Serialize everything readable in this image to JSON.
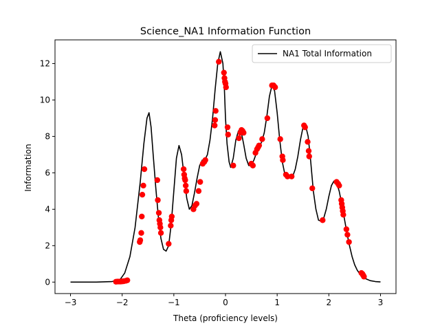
{
  "chart_data": {
    "type": "line",
    "title": "Science_NA1 Information Function",
    "xlabel": "Theta (proficiency levels)",
    "ylabel": "Information",
    "xlim": [
      -3.3,
      3.3
    ],
    "ylim": [
      -0.63,
      13.3
    ],
    "xticks": [
      -3,
      -2,
      -1,
      0,
      1,
      2,
      3
    ],
    "yticks": [
      0,
      2,
      4,
      6,
      8,
      10,
      12
    ],
    "xtick_labels": [
      "−3",
      "−2",
      "−1",
      "0",
      "1",
      "2",
      "3"
    ],
    "ytick_labels": [
      "0",
      "2",
      "4",
      "6",
      "8",
      "10",
      "12"
    ],
    "grid": false,
    "legend_position": "top-right",
    "colors": {
      "line": "#000000",
      "points": "#ff0000",
      "axes": "#000000"
    },
    "series": [
      {
        "name": "NA1 Total Information",
        "kind": "line",
        "x": [
          -3.0,
          -2.5,
          -2.2,
          -2.05,
          -1.95,
          -1.85,
          -1.75,
          -1.65,
          -1.58,
          -1.52,
          -1.48,
          -1.44,
          -1.4,
          -1.35,
          -1.3,
          -1.25,
          -1.2,
          -1.15,
          -1.1,
          -1.05,
          -1.0,
          -0.95,
          -0.9,
          -0.85,
          -0.8,
          -0.75,
          -0.7,
          -0.65,
          -0.6,
          -0.55,
          -0.5,
          -0.45,
          -0.4,
          -0.35,
          -0.3,
          -0.25,
          -0.2,
          -0.15,
          -0.1,
          -0.05,
          -0.02,
          0.0,
          0.03,
          0.07,
          0.1,
          0.15,
          0.2,
          0.25,
          0.3,
          0.35,
          0.4,
          0.45,
          0.5,
          0.55,
          0.6,
          0.65,
          0.7,
          0.75,
          0.8,
          0.85,
          0.9,
          0.95,
          1.0,
          1.05,
          1.1,
          1.15,
          1.2,
          1.25,
          1.3,
          1.35,
          1.4,
          1.45,
          1.5,
          1.55,
          1.6,
          1.65,
          1.7,
          1.75,
          1.8,
          1.85,
          1.9,
          1.95,
          2.0,
          2.05,
          2.1,
          2.15,
          2.2,
          2.25,
          2.3,
          2.35,
          2.4,
          2.45,
          2.5,
          2.55,
          2.6,
          2.65,
          2.7,
          2.8,
          2.9,
          3.0
        ],
        "y": [
          0.0,
          0.0,
          0.03,
          0.1,
          0.5,
          1.4,
          3.0,
          5.5,
          7.6,
          9.0,
          9.3,
          8.5,
          7.0,
          5.2,
          3.6,
          2.4,
          1.8,
          1.7,
          2.0,
          3.2,
          5.0,
          6.8,
          7.5,
          7.0,
          5.8,
          4.6,
          4.0,
          4.2,
          4.9,
          5.7,
          6.4,
          6.7,
          6.7,
          7.0,
          7.8,
          9.0,
          10.6,
          12.0,
          12.65,
          12.0,
          10.5,
          9.0,
          7.6,
          6.6,
          6.3,
          6.8,
          7.8,
          8.3,
          8.3,
          7.6,
          6.8,
          6.4,
          6.4,
          6.7,
          7.1,
          7.4,
          7.7,
          8.2,
          9.1,
          10.2,
          10.8,
          10.5,
          9.3,
          7.8,
          6.6,
          5.9,
          5.75,
          5.75,
          5.8,
          6.2,
          6.9,
          7.8,
          8.5,
          8.6,
          8.0,
          6.6,
          5.0,
          4.0,
          3.4,
          3.35,
          3.5,
          4.0,
          4.7,
          5.3,
          5.55,
          5.45,
          5.0,
          4.3,
          3.5,
          2.7,
          2.0,
          1.4,
          0.95,
          0.65,
          0.45,
          0.3,
          0.2,
          0.08,
          0.03,
          0.01
        ]
      },
      {
        "name": "",
        "kind": "scatter",
        "x": [
          -2.12,
          -2.09,
          -2.06,
          -2.03,
          -2.0,
          -1.97,
          -1.93,
          -1.9,
          -1.66,
          -1.65,
          -1.63,
          -1.62,
          -1.61,
          -1.59,
          -1.57,
          -1.32,
          -1.31,
          -1.29,
          -1.28,
          -1.27,
          -1.26,
          -1.25,
          -1.1,
          -1.06,
          -1.05,
          -1.04,
          -0.81,
          -0.8,
          -0.79,
          -0.78,
          -0.77,
          -0.76,
          -0.62,
          -0.59,
          -0.56,
          -0.52,
          -0.49,
          -0.44,
          -0.41,
          -0.39,
          -0.21,
          -0.2,
          -0.19,
          -0.13,
          -0.03,
          -0.02,
          -0.01,
          0.0,
          0.01,
          0.04,
          0.05,
          0.15,
          0.26,
          0.29,
          0.31,
          0.33,
          0.35,
          0.5,
          0.53,
          0.58,
          0.61,
          0.63,
          0.65,
          0.71,
          0.81,
          0.9,
          0.93,
          0.96,
          1.06,
          1.1,
          1.11,
          1.17,
          1.2,
          1.28,
          1.52,
          1.54,
          1.59,
          1.61,
          1.62,
          1.68,
          1.88,
          2.15,
          2.18,
          2.2,
          2.24,
          2.25,
          2.26,
          2.27,
          2.28,
          2.34,
          2.36,
          2.39,
          2.63,
          2.65,
          2.66,
          2.67,
          2.68
        ],
        "y": [
          0.02,
          0.03,
          0.03,
          0.03,
          0.04,
          0.05,
          0.07,
          0.1,
          2.2,
          2.3,
          2.7,
          3.6,
          4.8,
          5.3,
          6.2,
          5.6,
          4.5,
          3.8,
          3.4,
          3.2,
          3.0,
          2.7,
          2.1,
          3.1,
          3.4,
          3.6,
          6.2,
          5.9,
          5.7,
          5.6,
          5.3,
          5.0,
          4.0,
          4.2,
          4.3,
          5.0,
          5.5,
          6.5,
          6.6,
          6.7,
          8.6,
          8.9,
          9.4,
          12.1,
          11.5,
          11.2,
          11.0,
          10.9,
          10.7,
          8.5,
          8.1,
          6.4,
          7.9,
          8.2,
          8.35,
          8.3,
          8.2,
          6.5,
          6.4,
          7.1,
          7.3,
          7.4,
          7.5,
          7.85,
          9.0,
          10.8,
          10.8,
          10.7,
          7.85,
          6.9,
          6.7,
          5.9,
          5.8,
          5.8,
          8.6,
          8.5,
          7.7,
          7.2,
          6.9,
          5.15,
          3.4,
          5.5,
          5.4,
          5.3,
          4.5,
          4.3,
          4.1,
          3.9,
          3.7,
          2.9,
          2.6,
          2.2,
          0.5,
          0.45,
          0.4,
          0.35,
          0.3
        ]
      }
    ],
    "legend": [
      {
        "label": "NA1 Total Information",
        "marker": "line",
        "color": "#000000"
      }
    ]
  }
}
